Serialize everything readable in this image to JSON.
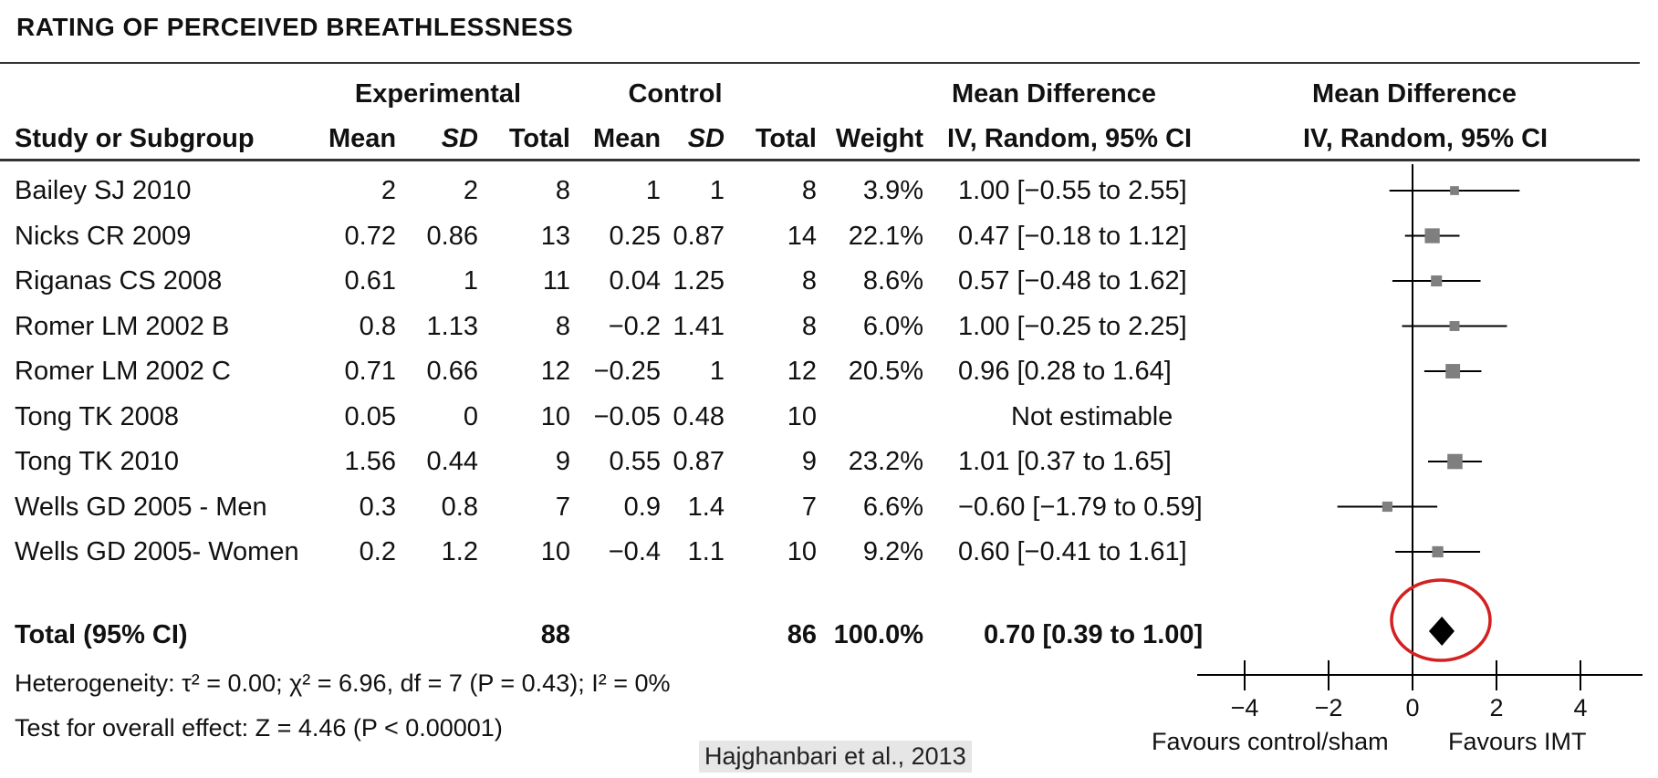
{
  "title": "RATING OF PERCEIVED BREATHLESSNESS",
  "headers": {
    "experimental": "Experimental",
    "control": "Control",
    "md_top_left": "Mean Difference",
    "md_top_right": "Mean Difference",
    "study": "Study or Subgroup",
    "mean": "Mean",
    "sd": "SD",
    "total": "Total",
    "weight": "Weight",
    "method_left": "IV, Random, 95% CI",
    "method_right": "IV, Random, 95% CI"
  },
  "rows": [
    {
      "study": "Bailey SJ 2010",
      "e_mean": "2",
      "e_sd": "2",
      "e_total": "8",
      "c_mean": "1",
      "c_sd": "1",
      "c_total": "8",
      "weight": "3.9%",
      "ci": "1.00 [−0.55 to 2.55]"
    },
    {
      "study": "Nicks CR 2009",
      "e_mean": "0.72",
      "e_sd": "0.86",
      "e_total": "13",
      "c_mean": "0.25",
      "c_sd": "0.87",
      "c_total": "14",
      "weight": "22.1%",
      "ci": "0.47 [−0.18 to 1.12]"
    },
    {
      "study": "Riganas CS 2008",
      "e_mean": "0.61",
      "e_sd": "1",
      "e_total": "11",
      "c_mean": "0.04",
      "c_sd": "1.25",
      "c_total": "8",
      "weight": "8.6%",
      "ci": "0.57 [−0.48 to 1.62]"
    },
    {
      "study": "Romer LM 2002 B",
      "e_mean": "0.8",
      "e_sd": "1.13",
      "e_total": "8",
      "c_mean": "−0.2",
      "c_sd": "1.41",
      "c_total": "8",
      "weight": "6.0%",
      "ci": "1.00 [−0.25 to 2.25]"
    },
    {
      "study": "Romer LM 2002 C",
      "e_mean": "0.71",
      "e_sd": "0.66",
      "e_total": "12",
      "c_mean": "−0.25",
      "c_sd": "1",
      "c_total": "12",
      "weight": "20.5%",
      "ci": "0.96 [0.28 to 1.64]"
    },
    {
      "study": "Tong TK 2008",
      "e_mean": "0.05",
      "e_sd": "0",
      "e_total": "10",
      "c_mean": "−0.05",
      "c_sd": "0.48",
      "c_total": "10",
      "weight": "",
      "ci": "Not estimable"
    },
    {
      "study": "Tong TK 2010",
      "e_mean": "1.56",
      "e_sd": "0.44",
      "e_total": "9",
      "c_mean": "0.55",
      "c_sd": "0.87",
      "c_total": "9",
      "weight": "23.2%",
      "ci": "1.01 [0.37 to 1.65]"
    },
    {
      "study": "Wells GD 2005 - Men",
      "e_mean": "0.3",
      "e_sd": "0.8",
      "e_total": "7",
      "c_mean": "0.9",
      "c_sd": "1.4",
      "c_total": "7",
      "weight": "6.6%",
      "ci": "−0.60 [−1.79 to 0.59]"
    },
    {
      "study": "Wells GD 2005- Women",
      "e_mean": "0.2",
      "e_sd": "1.2",
      "e_total": "10",
      "c_mean": "−0.4",
      "c_sd": "1.1",
      "c_total": "10",
      "weight": "9.2%",
      "ci": "0.60 [−0.41 to 1.61]"
    }
  ],
  "total_row": {
    "label": "Total (95% CI)",
    "e_total": "88",
    "c_total": "86",
    "weight": "100.0%",
    "ci": "0.70 [0.39 to 1.00]"
  },
  "heterogeneity": "Heterogeneity: τ² = 0.00; χ² = 6.96, df = 7 (P = 0.43); I² = 0%",
  "overall_effect": "Test for overall effect: Z = 4.46 (P < 0.00001)",
  "axis_left_label": "Favours control/sham",
  "axis_right_label": "Favours IMT",
  "credit": "Hajghanbari et al., 2013",
  "chart_data": {
    "type": "forest",
    "title": "RATING OF PERCEIVED BREATHLESSNESS",
    "xlim": [
      -5,
      5
    ],
    "ticks": [
      -4,
      -2,
      0,
      2,
      4
    ],
    "tick_labels": [
      "−4",
      "−2",
      "0",
      "2",
      "4"
    ],
    "null_line": 0,
    "studies": [
      {
        "name": "Bailey SJ 2010",
        "md": 1.0,
        "lo": -0.55,
        "hi": 2.55,
        "weight": 3.9
      },
      {
        "name": "Nicks CR 2009",
        "md": 0.47,
        "lo": -0.18,
        "hi": 1.12,
        "weight": 22.1
      },
      {
        "name": "Riganas CS 2008",
        "md": 0.57,
        "lo": -0.48,
        "hi": 1.62,
        "weight": 8.6
      },
      {
        "name": "Romer LM 2002 B",
        "md": 1.0,
        "lo": -0.25,
        "hi": 2.25,
        "weight": 6.0
      },
      {
        "name": "Romer LM 2002 C",
        "md": 0.96,
        "lo": 0.28,
        "hi": 1.64,
        "weight": 20.5
      },
      {
        "name": "Tong TK 2008",
        "md": null,
        "lo": null,
        "hi": null,
        "weight": null
      },
      {
        "name": "Tong TK 2010",
        "md": 1.01,
        "lo": 0.37,
        "hi": 1.65,
        "weight": 23.2
      },
      {
        "name": "Wells GD 2005 - Men",
        "md": -0.6,
        "lo": -1.79,
        "hi": 0.59,
        "weight": 6.6
      },
      {
        "name": "Wells GD 2005- Women",
        "md": 0.6,
        "lo": -0.41,
        "hi": 1.61,
        "weight": 9.2
      }
    ],
    "pooled": {
      "md": 0.7,
      "lo": 0.39,
      "hi": 1.0
    },
    "marker_color": "#7f7f7f",
    "highlight_color": "#d42020"
  }
}
